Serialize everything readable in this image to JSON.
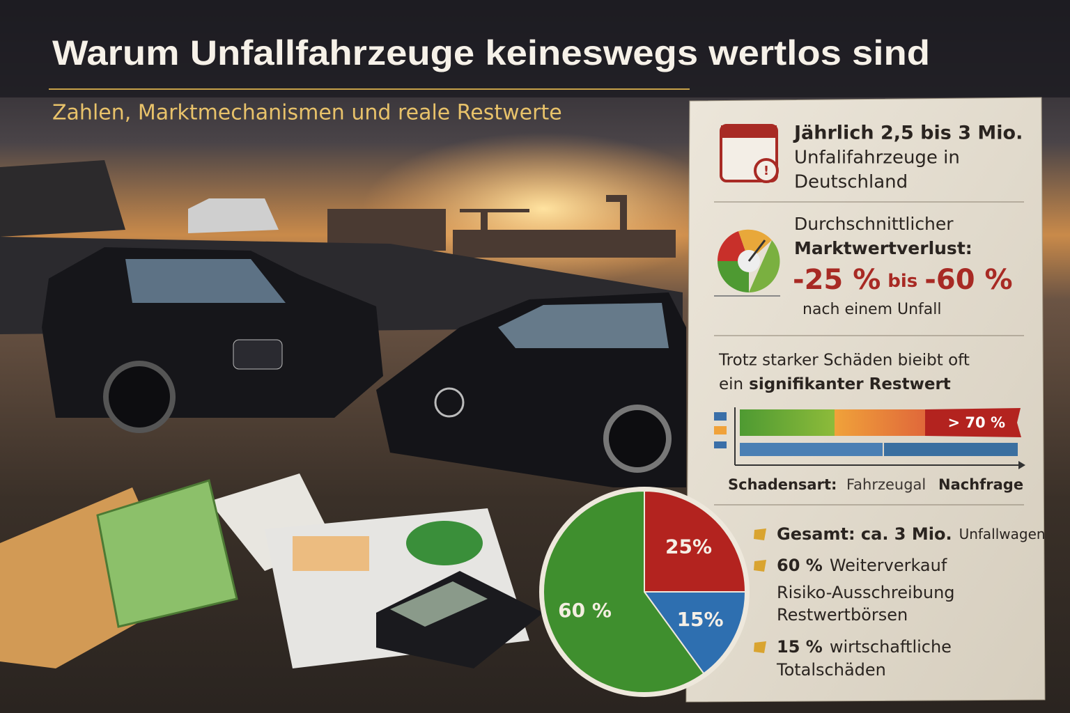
{
  "header": {
    "title": "Warum Unfallfahrzeuge keineswegs wertlos sind",
    "subtitle": "Zahlen, Marktmechanismen und reale Restwerte"
  },
  "panel": {
    "stat_count": {
      "line1": "Jährlich 2,5 bis 3 Mio.",
      "line2": "Unfalifahrzeuge in",
      "line3": "Deutschland"
    },
    "stat_loss": {
      "line1": "Durchschnittlicher",
      "line2": "Marktwertverlust:",
      "low": "-25 %",
      "between": "bis",
      "high": "-60 %",
      "line4": "nach einem Unfall"
    },
    "stat_rest": {
      "line1": "Trotz starker Schäden bieibt oft",
      "line2_plain": "ein",
      "line2_bold": "signifikanter Restwert",
      "bar_label": "> 70 %",
      "axis_1": "Schadensart:",
      "axis_2": "Fahrzeugal",
      "axis_3": "Nachfrage"
    },
    "list": [
      {
        "bold": "Gesamt: ca. 3 Mio.",
        "text": "Unfallwagen"
      },
      {
        "bold": "60 %",
        "text": "Weiterverkauf"
      },
      {
        "bold": "",
        "text": "Risiko-Ausschreibung"
      },
      {
        "bold": "",
        "text": "Restwertbörsen"
      },
      {
        "bold": "15 %",
        "text": "wirtschaftliche"
      },
      {
        "bold": "",
        "text": "Totalschäden"
      }
    ]
  },
  "chart_data": {
    "type": "pie",
    "values": [
      25,
      15,
      60
    ],
    "value_labels": [
      "25%",
      "15%",
      "60 %"
    ],
    "colors": [
      "#b3231f",
      "#2e6fb0",
      "#3f8f2e"
    ]
  }
}
